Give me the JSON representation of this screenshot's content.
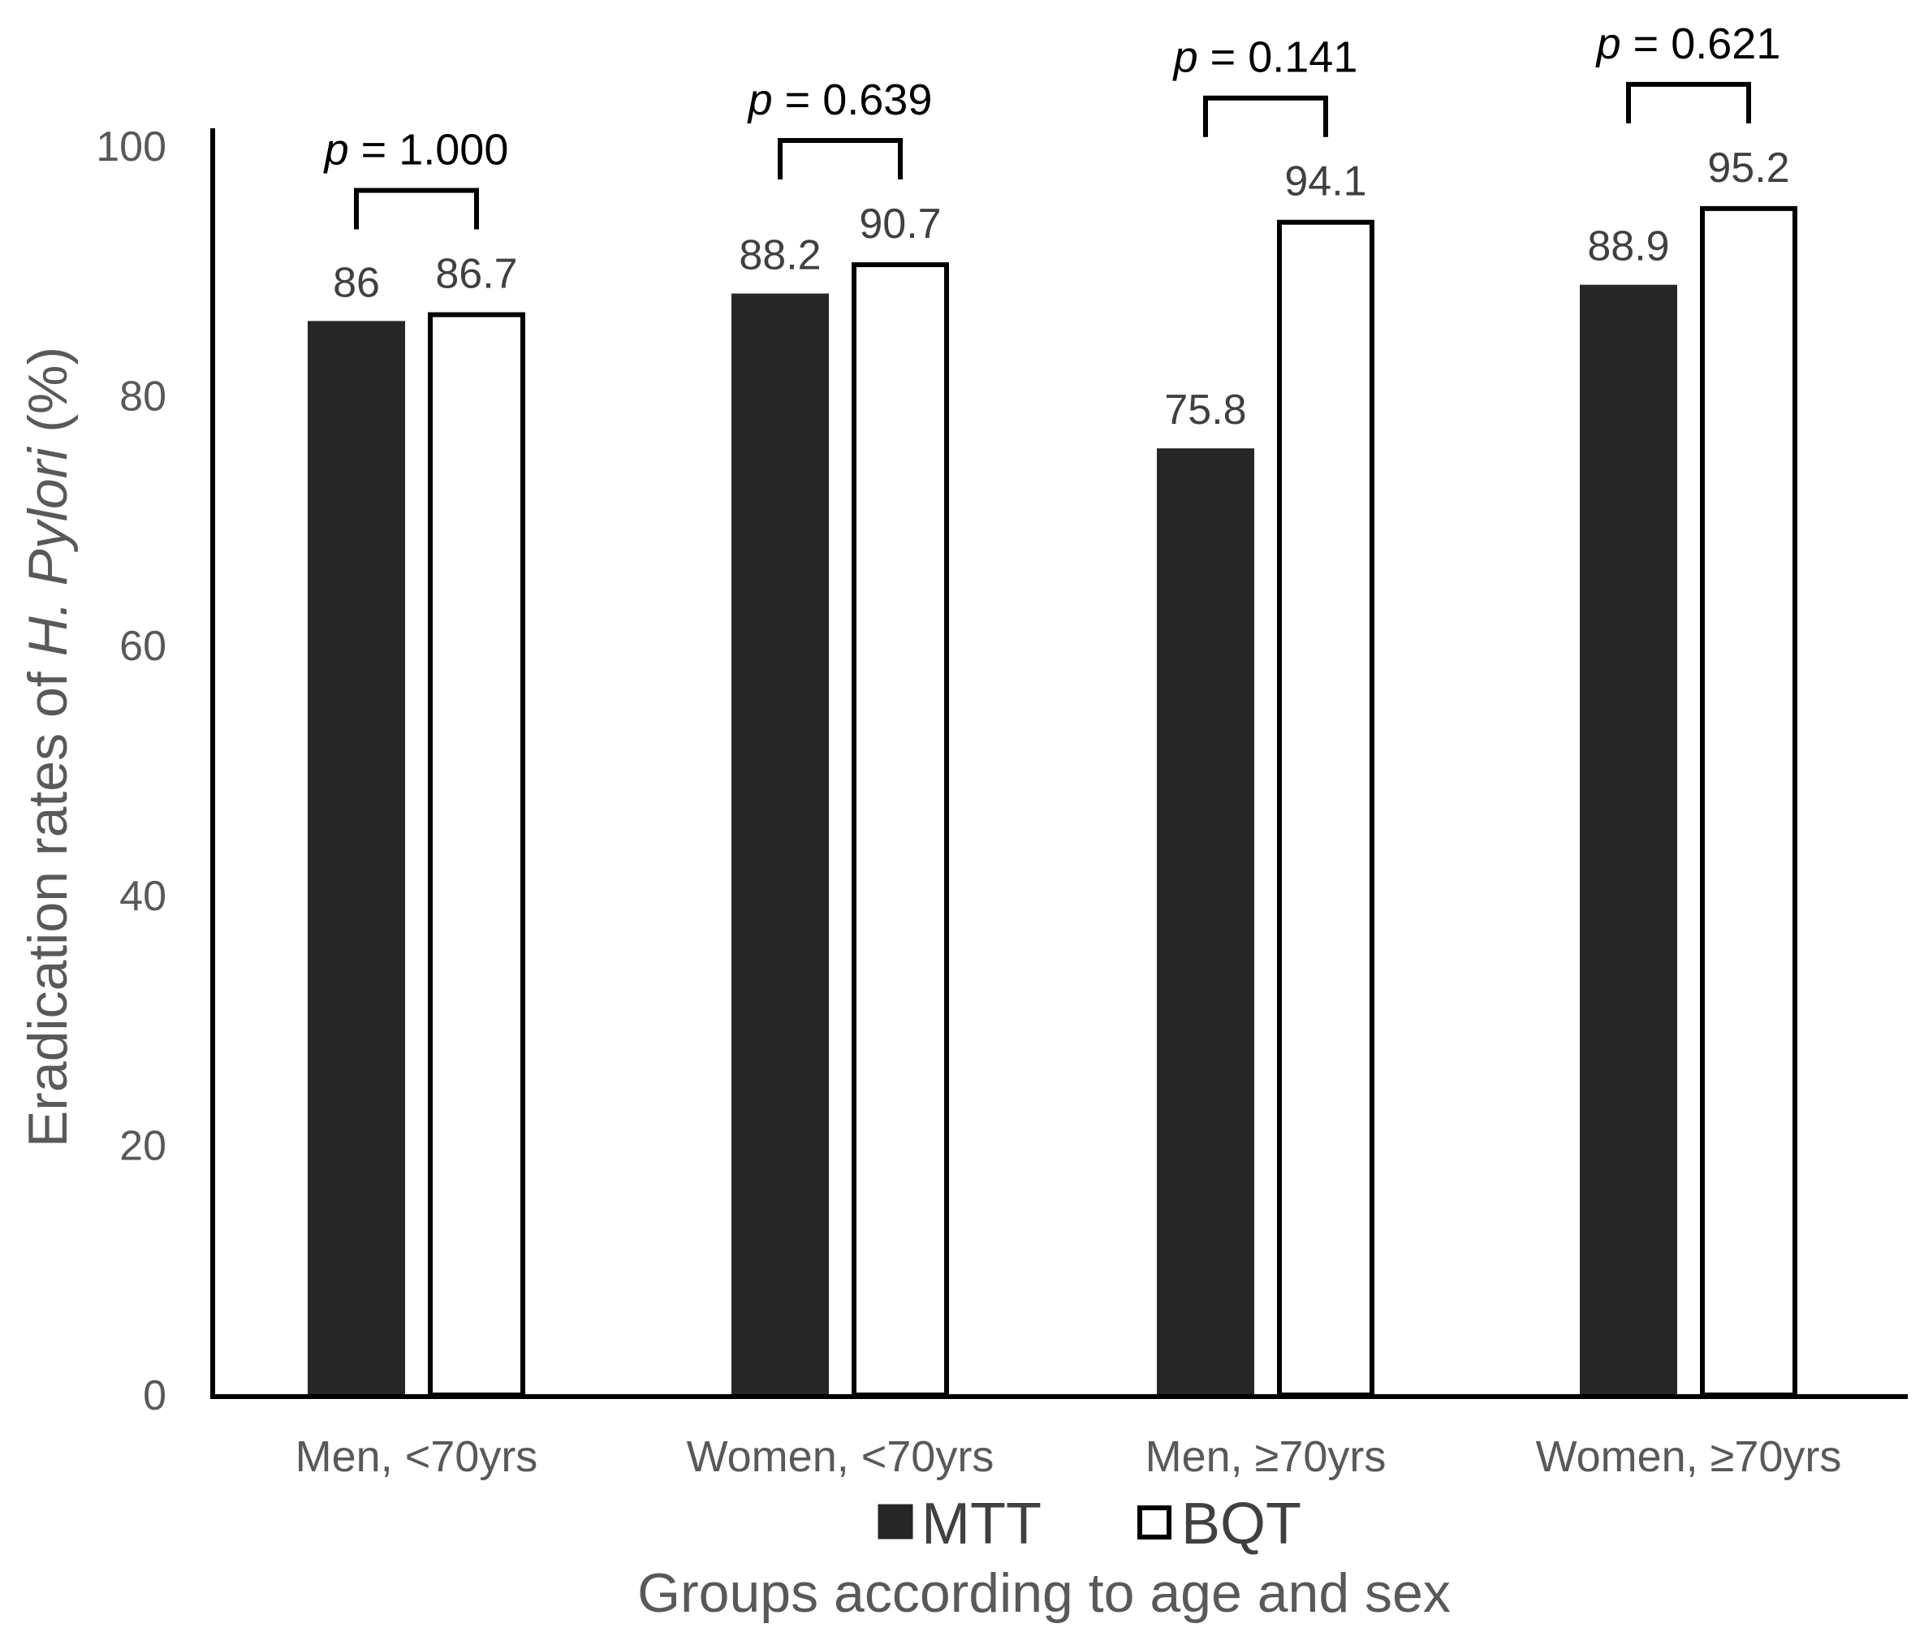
{
  "chart_data": {
    "type": "bar",
    "title": "",
    "xlabel": "Groups according to age and sex",
    "ylabel": {
      "prefix": "Eradication rates of ",
      "italic": "H. Pylori",
      "suffix": " (%)"
    },
    "ylim": [
      0,
      100
    ],
    "yticks": [
      "0",
      "20",
      "40",
      "60",
      "80",
      "100"
    ],
    "grid": false,
    "legend_position": "bottom",
    "categories": [
      "Men, <70yrs",
      "Women, <70yrs",
      "Men, ≥70yrs",
      "Women, ≥70yrs"
    ],
    "series": [
      {
        "name": "MTT",
        "color": "#262626",
        "values": [
          86,
          88.2,
          75.8,
          88.9
        ],
        "labels": [
          "86",
          "88.2",
          "75.8",
          "88.9"
        ]
      },
      {
        "name": "BQT",
        "color": "#ffffff",
        "values": [
          86.7,
          90.7,
          94.1,
          95.2
        ],
        "labels": [
          "86.7",
          "90.7",
          "94.1",
          "95.2"
        ]
      }
    ],
    "p_values": [
      {
        "symbol": "p",
        "value": "= 1.000"
      },
      {
        "symbol": "p",
        "value": "= 0.639"
      },
      {
        "symbol": "p",
        "value": "= 0.141"
      },
      {
        "symbol": "p",
        "value": "= 0.621"
      }
    ]
  }
}
